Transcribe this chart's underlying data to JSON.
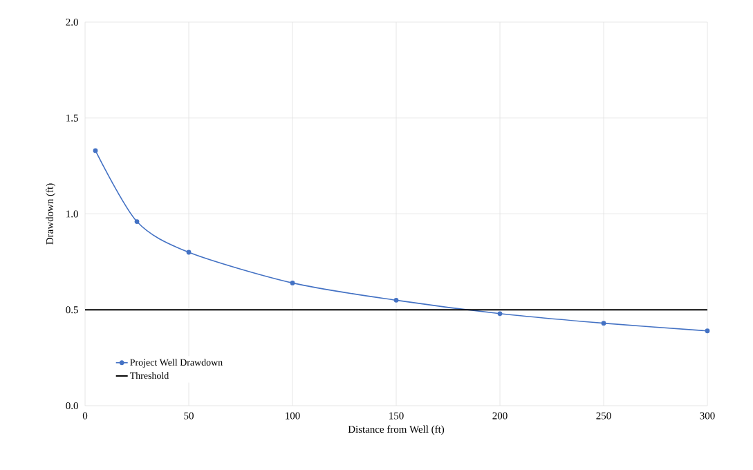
{
  "chart_data": {
    "type": "line",
    "xlabel": "Distance from Well (ft)",
    "ylabel": "Drawdown (ft)",
    "series": [
      {
        "name": "Project Well Drawdown",
        "color": "#4472c4",
        "x": [
          5,
          25,
          50,
          100,
          150,
          200,
          250,
          300
        ],
        "values": [
          1.33,
          0.96,
          0.8,
          0.64,
          0.55,
          0.48,
          0.43,
          0.39
        ],
        "marker": "circle"
      },
      {
        "name": "Threshold",
        "color": "#000000",
        "x": [
          0,
          300
        ],
        "values": [
          0.5,
          0.5
        ],
        "marker": "none"
      }
    ],
    "xlim": [
      0,
      300
    ],
    "xticks": [
      0,
      50,
      100,
      150,
      200,
      250,
      300
    ],
    "ylim": [
      0,
      2
    ],
    "yticks": [
      {
        "value": 0,
        "label": "0.0"
      },
      {
        "value": 0.5,
        "label": "0.5"
      },
      {
        "value": 1,
        "label": "1.0"
      },
      {
        "value": 1.5,
        "label": "1.5"
      },
      {
        "value": 2,
        "label": "2.0"
      }
    ],
    "grid": true,
    "legend": "bottom left",
    "line_style": "solid"
  }
}
